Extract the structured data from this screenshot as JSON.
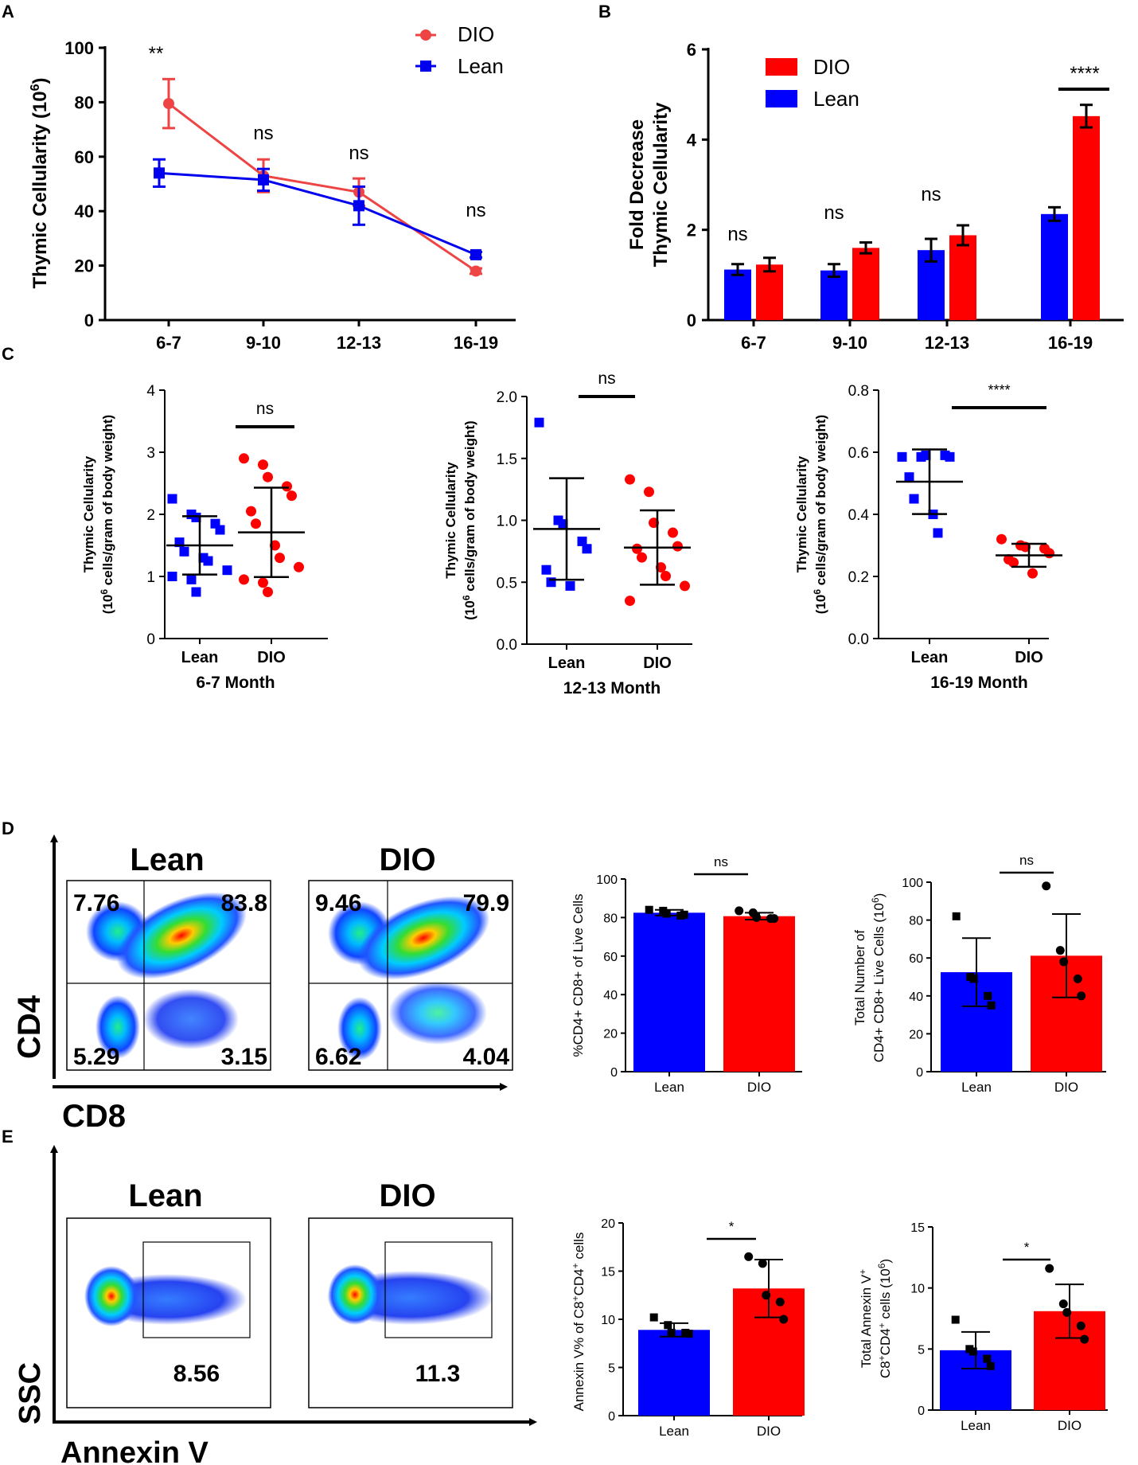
{
  "colors": {
    "dio": "#ff0000",
    "dio_line": "#ee4444",
    "lean": "#0000ff",
    "axis": "#000000"
  },
  "panels": {
    "A": "A",
    "B": "B",
    "C": "C",
    "D": "D",
    "E": "E"
  },
  "chart_data": [
    {
      "id": "A",
      "type": "line",
      "categories": [
        "6-7",
        "9-10",
        "12-13",
        "16-19"
      ],
      "ylabel": "Thymic Cellularity (10",
      "ylabel_sup": "6",
      "ylabel_end": ")",
      "ylim": [
        0,
        100
      ],
      "yticks": [
        0,
        20,
        40,
        60,
        80,
        100
      ],
      "series": [
        {
          "name": "DIO",
          "values": [
            79.5,
            53,
            47,
            18
          ],
          "errors": [
            9,
            6,
            5,
            1
          ]
        },
        {
          "name": "Lean",
          "values": [
            54,
            51.5,
            42,
            24
          ],
          "errors": [
            5,
            4,
            7,
            1
          ]
        }
      ],
      "annotations": [
        "**",
        "ns",
        "ns",
        "ns"
      ],
      "legend": "top-right"
    },
    {
      "id": "B",
      "type": "bar",
      "categories": [
        "6-7",
        "9-10",
        "12-13",
        "16-19"
      ],
      "ylabel_line1": "Fold Decrease",
      "ylabel_line2": "Thymic Cellularity",
      "ylim": [
        0,
        6
      ],
      "yticks": [
        0,
        2,
        4,
        6
      ],
      "series": [
        {
          "name": "Lean",
          "values": [
            1.12,
            1.1,
            1.55,
            2.35
          ],
          "errors": [
            0.12,
            0.14,
            0.25,
            0.15
          ]
        },
        {
          "name": "DIO",
          "values": [
            1.23,
            1.6,
            1.88,
            4.52
          ],
          "errors": [
            0.15,
            0.12,
            0.22,
            0.25
          ]
        }
      ],
      "annotations": [
        "ns",
        "ns",
        "ns",
        "****"
      ],
      "legend": "top-left"
    },
    {
      "id": "C1",
      "type": "scatter",
      "title": "6-7 Month",
      "categories": [
        "Lean",
        "DIO"
      ],
      "ylabel_line1": "Thymic Cellularity",
      "ylabel_line2_pre": "(10",
      "ylabel_line2_sup": "6",
      "ylabel_line2_post": " cells/gram of body weight)",
      "ylim": [
        0,
        4
      ],
      "yticks": [
        "0",
        "1",
        "2",
        "3",
        "4"
      ],
      "ytick_values": [
        0,
        1,
        2,
        3,
        4
      ],
      "lean": {
        "mean": 1.5,
        "sd": 0.47,
        "points": [
          2.25,
          2.0,
          1.95,
          1.85,
          1.75,
          1.55,
          1.4,
          1.3,
          1.25,
          1.1,
          1.0,
          0.95,
          0.75
        ]
      },
      "dio": {
        "mean": 1.71,
        "sd": 0.72,
        "points": [
          2.9,
          2.8,
          2.6,
          2.45,
          2.3,
          2.05,
          1.85,
          1.5,
          1.3,
          1.15,
          0.95,
          0.9,
          0.75
        ]
      },
      "annotation": "ns"
    },
    {
      "id": "C2",
      "type": "scatter",
      "title": "12-13 Month",
      "categories": [
        "Lean",
        "DIO"
      ],
      "ylabel_line1": "Thymic Cellularity",
      "ylabel_line2_pre": "(10",
      "ylabel_line2_sup": "6",
      "ylabel_line2_post": " cells/gram of body weight)",
      "ylim": [
        0,
        2.0
      ],
      "yticks": [
        "0.0",
        "0.5",
        "1.0",
        "1.5",
        "2.0"
      ],
      "ytick_values": [
        0,
        0.5,
        1.0,
        1.5,
        2.0
      ],
      "lean": {
        "mean": 0.93,
        "sd": 0.41,
        "points": [
          1.79,
          1.0,
          0.97,
          0.83,
          0.77,
          0.6,
          0.5,
          0.47
        ]
      },
      "dio": {
        "mean": 0.78,
        "sd": 0.3,
        "points": [
          1.33,
          1.23,
          0.98,
          0.9,
          0.79,
          0.77,
          0.7,
          0.62,
          0.55,
          0.47,
          0.35
        ]
      },
      "annotation": "ns"
    },
    {
      "id": "C3",
      "type": "scatter",
      "title": "16-19 Month",
      "categories": [
        "Lean",
        "DIO"
      ],
      "ylabel_line1": "Thymic Cellularity",
      "ylabel_line2_pre": "(10",
      "ylabel_line2_sup": "6",
      "ylabel_line2_post": " cells/gram of body weight)",
      "ylim": [
        0,
        0.8
      ],
      "yticks": [
        "0.0",
        "0.2",
        "0.4",
        "0.6",
        "0.8"
      ],
      "ytick_values": [
        0,
        0.2,
        0.4,
        0.6,
        0.8
      ],
      "lean": {
        "mean": 0.505,
        "sd": 0.104,
        "points": [
          0.585,
          0.585,
          0.59,
          0.59,
          0.585,
          0.52,
          0.45,
          0.4,
          0.34
        ]
      },
      "dio": {
        "mean": 0.268,
        "sd": 0.037,
        "points": [
          0.32,
          0.3,
          0.295,
          0.29,
          0.275,
          0.255,
          0.245,
          0.21
        ]
      },
      "annotation": "****"
    },
    {
      "id": "D1",
      "type": "bar",
      "categories": [
        "Lean",
        "DIO"
      ],
      "ylabel": "%CD4+ CD8+ of Live Cells",
      "ylim": [
        0,
        100
      ],
      "yticks": [
        0,
        20,
        40,
        60,
        80,
        100
      ],
      "values": [
        82.5,
        80.7
      ],
      "errors": [
        1.5,
        1.8
      ],
      "lean_points": [
        84,
        83.5,
        82,
        81,
        81.5
      ],
      "dio_points": [
        83.5,
        82.5,
        80,
        79.5,
        79.5
      ],
      "annotation": "ns"
    },
    {
      "id": "D2",
      "type": "bar",
      "categories": [
        "Lean",
        "DIO"
      ],
      "ylabel_line1": "Total Number of",
      "ylabel_line2_pre": "CD4+ CD8+  Live Cells (10",
      "ylabel_line2_sup": "6",
      "ylabel_line2_post": ")",
      "ylim": [
        0,
        100
      ],
      "yticks": [
        0,
        20,
        40,
        60,
        80,
        100
      ],
      "values": [
        52.5,
        61.2
      ],
      "errors": [
        18,
        22
      ],
      "lean_points": [
        82,
        50,
        49,
        40,
        35
      ],
      "dio_points": [
        98,
        64,
        58,
        49,
        40
      ],
      "annotation": "ns"
    },
    {
      "id": "E1",
      "type": "bar",
      "categories": [
        "Lean",
        "DIO"
      ],
      "ylabel_pre": "Annexin V% of C8",
      "ylabel_sup1": "+",
      "ylabel_mid": "CD4",
      "ylabel_sup2": "+",
      "ylabel_post": " cells",
      "ylim": [
        0,
        20
      ],
      "yticks": [
        0,
        5,
        10,
        15,
        20
      ],
      "values": [
        8.9,
        13.2
      ],
      "errors": [
        0.7,
        3.0
      ],
      "lean_points": [
        10.2,
        9.4,
        8.6,
        8.6,
        8.5
      ],
      "dio_points": [
        16.5,
        15.8,
        12.5,
        11.8,
        10.0
      ],
      "annotation": "*"
    },
    {
      "id": "E2",
      "type": "bar",
      "categories": [
        "Lean",
        "DIO"
      ],
      "ylabel_line1_pre": "Total Annexin V",
      "ylabel_line1_sup": "+",
      "ylabel_line2_pre": "C8",
      "ylabel_line2_sup1": "+",
      "ylabel_line2_mid": "CD4",
      "ylabel_line2_sup2": "+",
      "ylabel_line2_post": " cells (10",
      "ylabel_line2_sup3": "6",
      "ylabel_line2_end": ")",
      "ylim": [
        0,
        15
      ],
      "yticks": [
        0,
        5,
        10,
        15
      ],
      "values": [
        4.9,
        8.1
      ],
      "errors": [
        1.5,
        2.2
      ],
      "lean_points": [
        7.4,
        5.0,
        4.8,
        4.2,
        3.6
      ],
      "dio_points": [
        11.6,
        8.7,
        8.0,
        6.9,
        5.8
      ],
      "annotation": "*"
    }
  ],
  "flow_D": {
    "y_axis": "CD4",
    "x_axis": "CD8",
    "lean": {
      "title": "Lean",
      "q_ul": "7.76",
      "q_ur": "83.8",
      "q_ll": "5.29",
      "q_lr": "3.15"
    },
    "dio": {
      "title": "DIO",
      "q_ul": "9.46",
      "q_ur": "79.9",
      "q_ll": "6.62",
      "q_lr": "4.04"
    }
  },
  "flow_E": {
    "y_axis": "SSC",
    "x_axis": "Annexin V",
    "lean": {
      "title": "Lean",
      "gate": "8.56"
    },
    "dio": {
      "title": "DIO",
      "gate": "11.3"
    }
  }
}
